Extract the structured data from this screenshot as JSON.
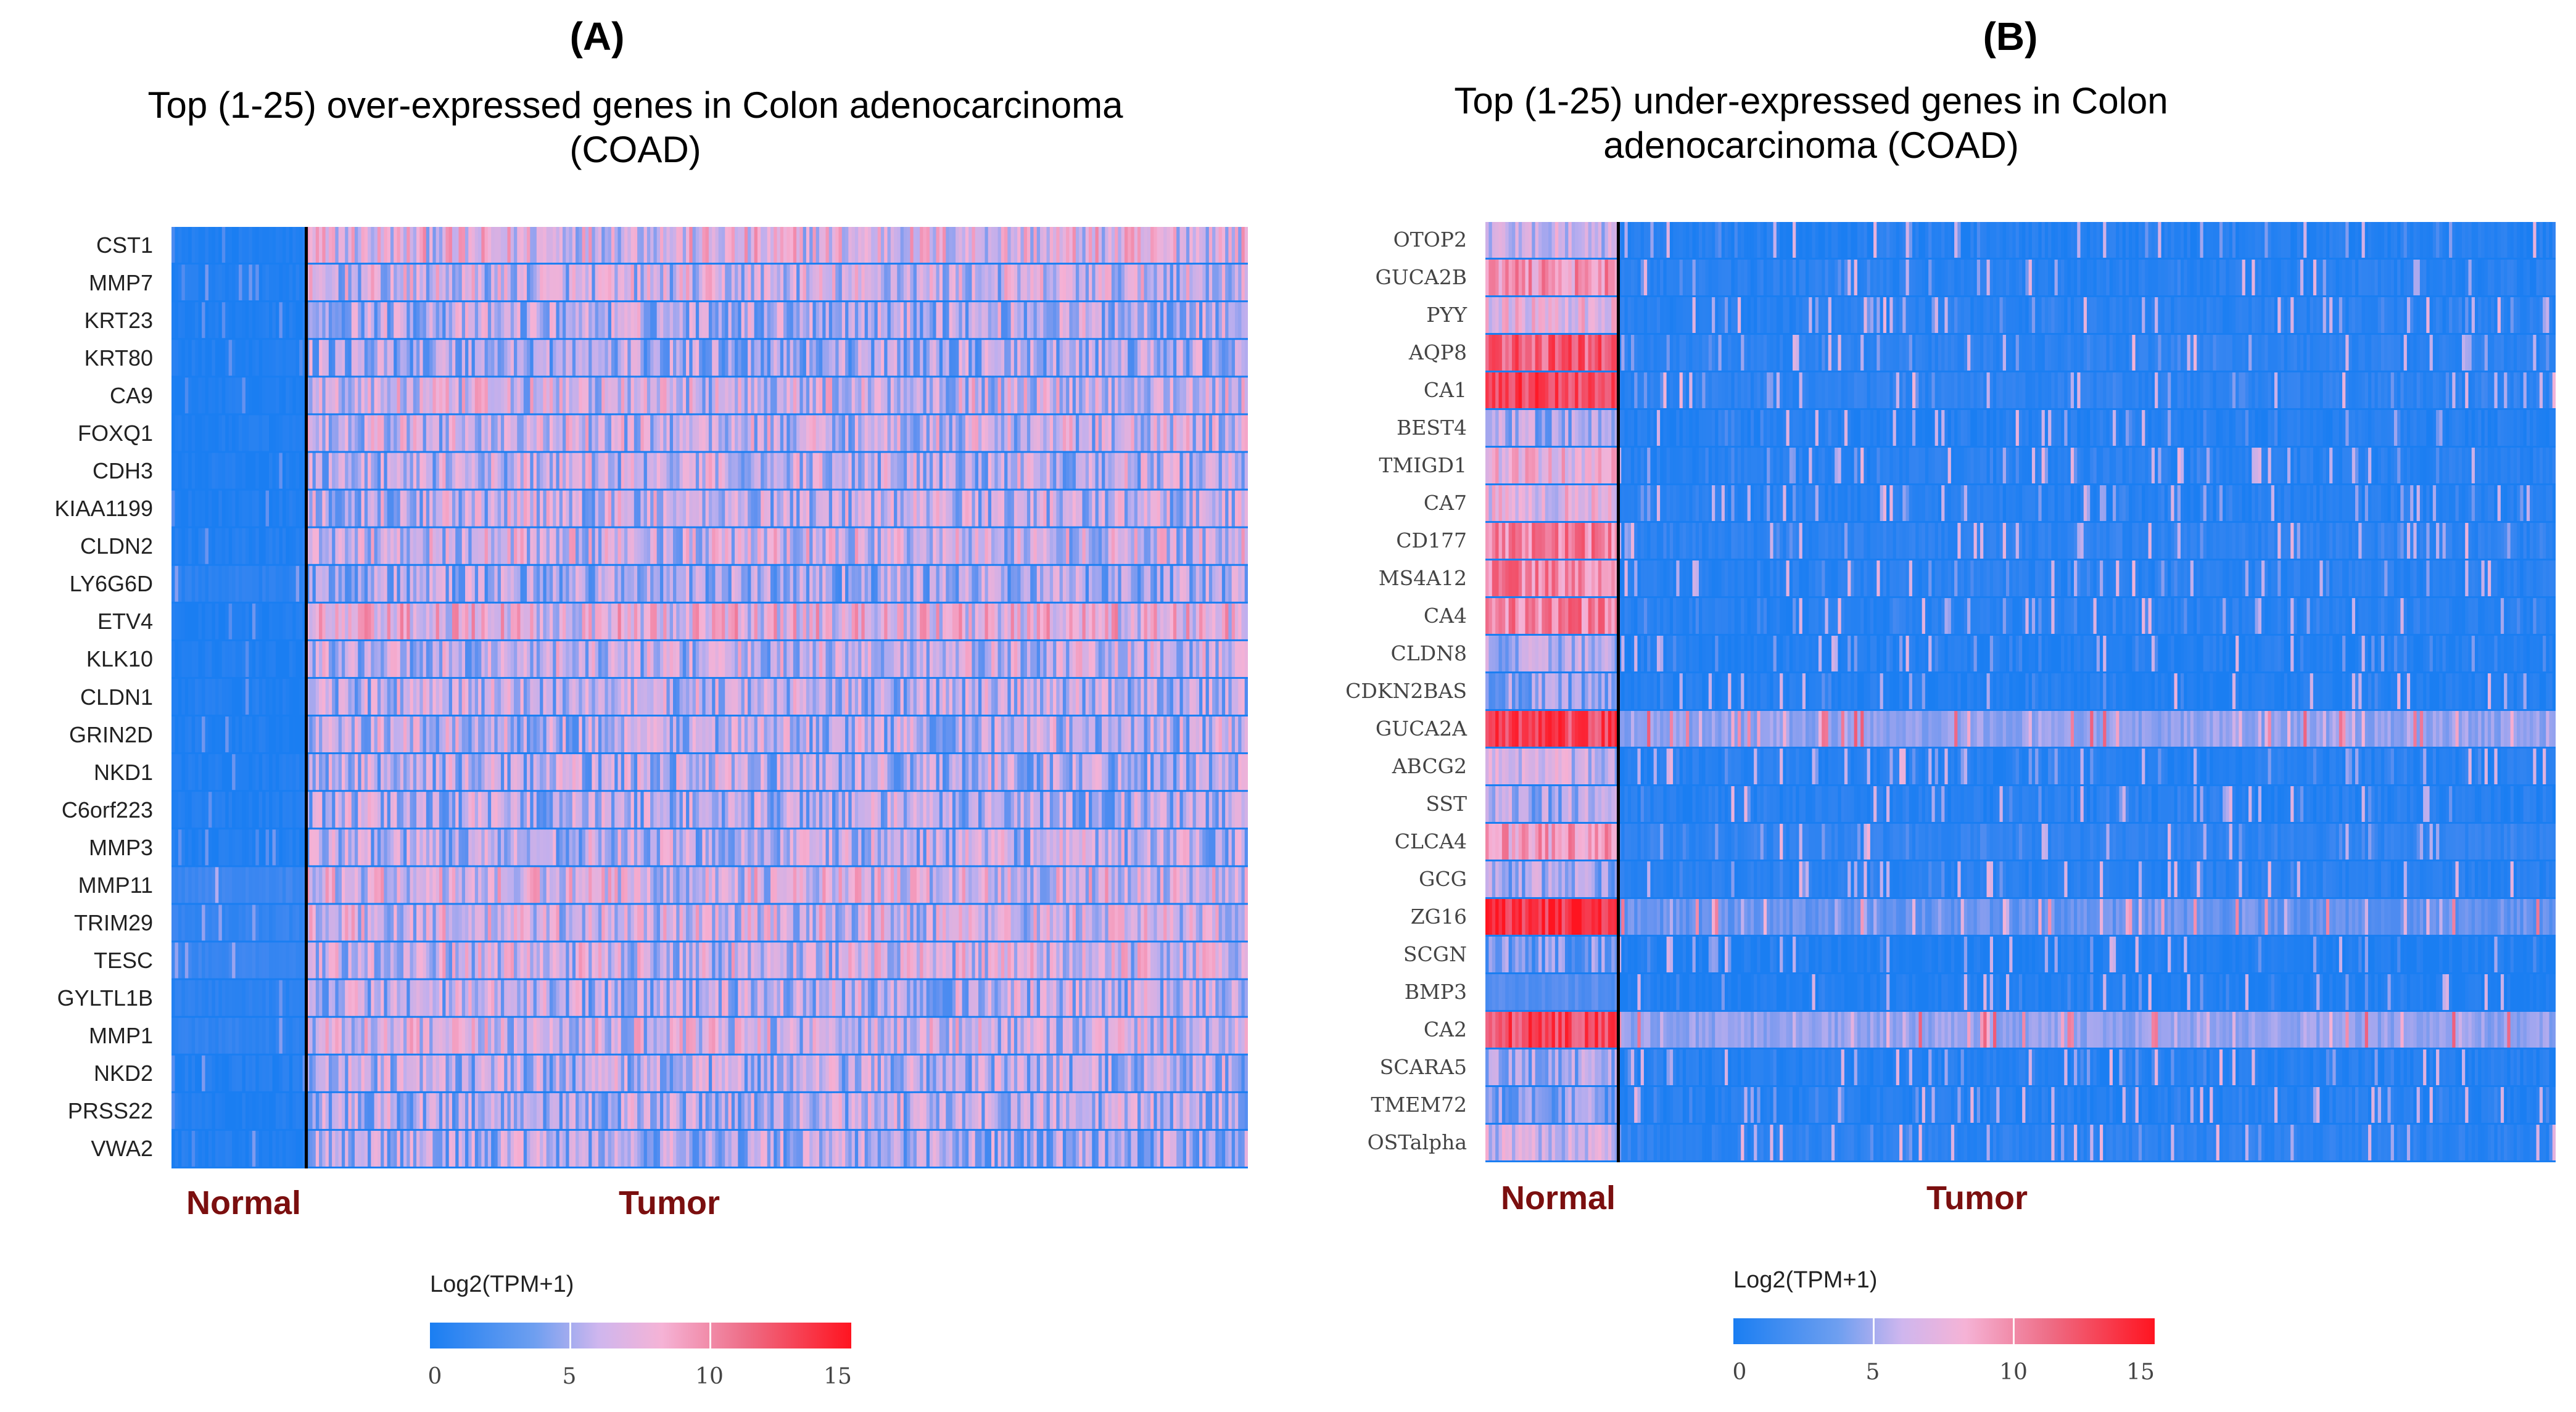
{
  "colors": {
    "low": "#1a7ef2",
    "mid": "#f5b3d6",
    "high": "#ff1420",
    "group_label": "#7b0f0f"
  },
  "chart_data": [
    {
      "type": "heatmap",
      "panel": "(A)",
      "title": "Top (1-25) over-expressed genes in Colon adenocarcinoma (COAD)",
      "title_lines": [
        "Top (1-25) over-expressed genes in Colon adenocarcinoma",
        "(COAD)"
      ],
      "rows": [
        "CST1",
        "MMP7",
        "KRT23",
        "KRT80",
        "CA9",
        "FOXQ1",
        "CDH3",
        "KIAA1199",
        "CLDN2",
        "LY6G6D",
        "ETV4",
        "KLK10",
        "CLDN1",
        "GRIN2D",
        "NKD1",
        "C6orf223",
        "MMP3",
        "MMP11",
        "TRIM29",
        "TESC",
        "GYLTL1B",
        "MMP1",
        "NKD2",
        "PRSS22",
        "VWA2"
      ],
      "groups": [
        "Normal",
        "Tumor"
      ],
      "normal_mean_log2": [
        0.3,
        0.4,
        0.3,
        0.3,
        0.3,
        0.3,
        0.3,
        0.4,
        0.5,
        1.0,
        0.3,
        0.3,
        0.4,
        0.3,
        0.4,
        0.4,
        0.4,
        2.0,
        1.5,
        1.8,
        1.0,
        1.2,
        0.5,
        0.4,
        0.5
      ],
      "tumor_mean_log2": [
        6.8,
        6.0,
        5.5,
        5.0,
        6.2,
        6.0,
        5.8,
        5.9,
        6.2,
        5.0,
        7.2,
        5.8,
        5.6,
        5.6,
        5.5,
        5.4,
        5.6,
        6.5,
        6.3,
        6.2,
        5.6,
        6.2,
        5.4,
        5.4,
        5.2
      ],
      "legend_title": "Log2(TPM+1)",
      "legend_ticks": [
        "0",
        "5",
        "10",
        "15"
      ],
      "value_range": [
        0,
        15
      ]
    },
    {
      "type": "heatmap",
      "panel": "(B)",
      "title": "Top (1-25) under-expressed genes in Colon adenocarcinoma (COAD)",
      "title_lines": [
        "Top (1-25) under-expressed genes in Colon",
        "adenocarcinoma (COAD)"
      ],
      "rows": [
        "OTOP2",
        "GUCA2B",
        "PYY",
        "AQP8",
        "CA1",
        "BEST4",
        "TMIGD1",
        "CA7",
        "CD177",
        "MS4A12",
        "CA4",
        "CLDN8",
        "CDKN2BAS",
        "GUCA2A",
        "ABCG2",
        "SST",
        "CLCA4",
        "GCG",
        "ZG16",
        "SCGN",
        "BMP3",
        "CA2",
        "SCARA5",
        "TMEM72",
        "OSTalpha"
      ],
      "groups": [
        "Normal",
        "Tumor"
      ],
      "normal_mean_log2": [
        6.0,
        9.0,
        7.0,
        11.5,
        12.5,
        5.0,
        7.5,
        7.0,
        10.0,
        10.0,
        10.0,
        5.0,
        4.5,
        12.5,
        6.0,
        5.0,
        8.5,
        5.0,
        13.5,
        3.5,
        3.0,
        12.5,
        5.0,
        4.0,
        6.0
      ],
      "tumor_mean_log2": [
        0.6,
        0.8,
        0.8,
        1.0,
        1.0,
        0.6,
        0.8,
        0.7,
        1.0,
        0.8,
        0.8,
        0.5,
        0.5,
        4.5,
        0.7,
        0.7,
        1.2,
        0.8,
        3.5,
        0.3,
        0.3,
        4.5,
        0.6,
        0.6,
        1.0
      ],
      "legend_title": "Log2(TPM+1)",
      "legend_ticks": [
        "0",
        "5",
        "10",
        "15"
      ],
      "value_range": [
        0,
        15
      ]
    }
  ]
}
